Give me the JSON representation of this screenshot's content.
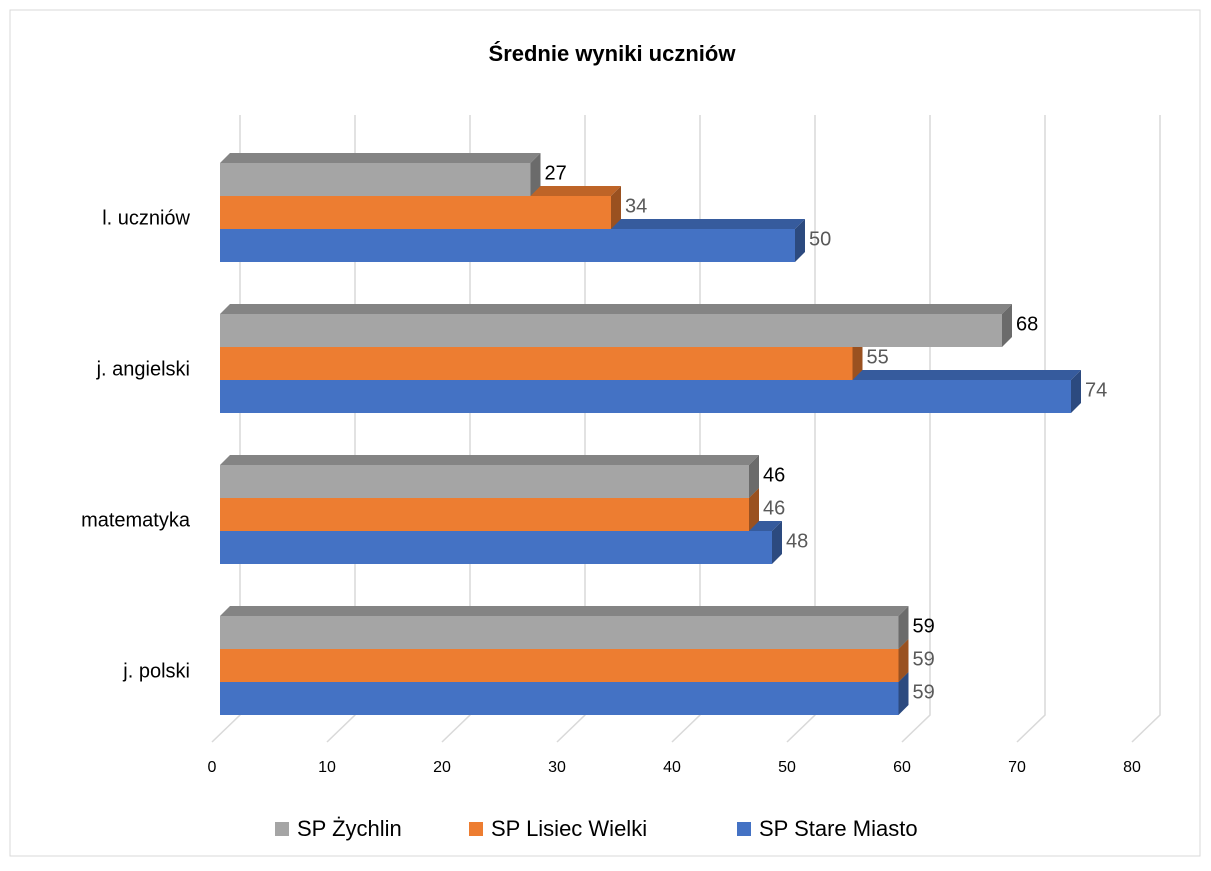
{
  "chart_data": {
    "type": "bar",
    "orientation": "horizontal",
    "title": "Średnie wyniki uczniów",
    "categories": [
      "j. polski",
      "matematyka",
      "j. angielski",
      "l. uczniów"
    ],
    "series": [
      {
        "name": "SP Żychlin",
        "color": "#a5a5a5",
        "values": [
          59,
          46,
          68,
          27
        ]
      },
      {
        "name": "SP Lisiec Wielki",
        "color": "#ed7d31",
        "values": [
          59,
          46,
          55,
          34
        ]
      },
      {
        "name": "SP Stare Miasto",
        "color": "#4472c4",
        "values": [
          59,
          48,
          74,
          50
        ]
      }
    ],
    "xlim": [
      0,
      80
    ],
    "xticks": [
      0,
      10,
      20,
      30,
      40,
      50,
      60,
      70,
      80
    ],
    "grid": true,
    "legend": "bottom"
  }
}
